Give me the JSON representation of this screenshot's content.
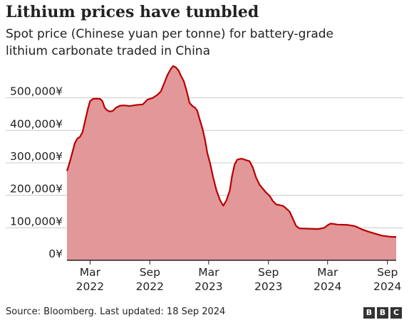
{
  "chart_data": {
    "type": "area",
    "title": "Lithium prices have tumbled",
    "subtitle_lines": [
      "Spot price (Chinese yuan per tonne) for battery-grade",
      "lithium carbonate traded in China"
    ],
    "ylim": [
      0,
      600000
    ],
    "yticks": [
      0,
      100000,
      200000,
      300000,
      400000,
      500000
    ],
    "ytick_labels": [
      "0¥",
      "100,000¥",
      "200,000¥",
      "300,000¥",
      "400,000¥",
      "500,000¥"
    ],
    "xlim": [
      "2021-12-20",
      "2024-09-28"
    ],
    "xticks": [
      {
        "date": "2022-03-01",
        "month": "Mar",
        "year": "2022"
      },
      {
        "date": "2022-09-01",
        "month": "Sep",
        "year": "2022"
      },
      {
        "date": "2023-03-01",
        "month": "Mar",
        "year": "2023"
      },
      {
        "date": "2023-09-01",
        "month": "Sep",
        "year": "2023"
      },
      {
        "date": "2024-03-01",
        "month": "Mar",
        "year": "2024"
      },
      {
        "date": "2024-09-01",
        "month": "Sep",
        "year": "2024"
      }
    ],
    "grid": true,
    "series": [
      {
        "line_color": "#b80000",
        "fill_color": "#e29799",
        "points": [
          [
            "2021-12-20",
            275000
          ],
          [
            "2021-12-28",
            300000
          ],
          [
            "2022-01-05",
            330000
          ],
          [
            "2022-01-13",
            360000
          ],
          [
            "2022-01-21",
            375000
          ],
          [
            "2022-01-29",
            380000
          ],
          [
            "2022-02-06",
            395000
          ],
          [
            "2022-02-14",
            430000
          ],
          [
            "2022-02-22",
            465000
          ],
          [
            "2022-03-01",
            490000
          ],
          [
            "2022-03-10",
            497000
          ],
          [
            "2022-03-20",
            498000
          ],
          [
            "2022-04-01",
            497000
          ],
          [
            "2022-04-08",
            490000
          ],
          [
            "2022-04-15",
            470000
          ],
          [
            "2022-04-22",
            462000
          ],
          [
            "2022-05-01",
            458000
          ],
          [
            "2022-05-10",
            460000
          ],
          [
            "2022-05-20",
            470000
          ],
          [
            "2022-06-01",
            476000
          ],
          [
            "2022-06-15",
            477000
          ],
          [
            "2022-07-01",
            475000
          ],
          [
            "2022-07-20",
            478000
          ],
          [
            "2022-08-10",
            480000
          ],
          [
            "2022-08-25",
            495000
          ],
          [
            "2022-09-10",
            500000
          ],
          [
            "2022-09-25",
            510000
          ],
          [
            "2022-10-05",
            520000
          ],
          [
            "2022-10-15",
            545000
          ],
          [
            "2022-10-25",
            570000
          ],
          [
            "2022-11-05",
            590000
          ],
          [
            "2022-11-12",
            598000
          ],
          [
            "2022-11-20",
            594000
          ],
          [
            "2022-11-28",
            585000
          ],
          [
            "2022-12-05",
            570000
          ],
          [
            "2022-12-15",
            550000
          ],
          [
            "2022-12-25",
            515000
          ],
          [
            "2023-01-01",
            485000
          ],
          [
            "2023-01-10",
            475000
          ],
          [
            "2023-01-18",
            470000
          ],
          [
            "2023-01-25",
            460000
          ],
          [
            "2023-02-01",
            435000
          ],
          [
            "2023-02-10",
            405000
          ],
          [
            "2023-02-18",
            370000
          ],
          [
            "2023-02-25",
            330000
          ],
          [
            "2023-03-05",
            300000
          ],
          [
            "2023-03-15",
            255000
          ],
          [
            "2023-03-25",
            215000
          ],
          [
            "2023-04-05",
            185000
          ],
          [
            "2023-04-15",
            168000
          ],
          [
            "2023-04-25",
            185000
          ],
          [
            "2023-05-05",
            215000
          ],
          [
            "2023-05-12",
            260000
          ],
          [
            "2023-05-20",
            295000
          ],
          [
            "2023-05-28",
            310000
          ],
          [
            "2023-06-10",
            313000
          ],
          [
            "2023-06-25",
            308000
          ],
          [
            "2023-07-05",
            305000
          ],
          [
            "2023-07-15",
            285000
          ],
          [
            "2023-07-25",
            255000
          ],
          [
            "2023-08-05",
            232000
          ],
          [
            "2023-08-15",
            220000
          ],
          [
            "2023-08-25",
            208000
          ],
          [
            "2023-09-05",
            198000
          ],
          [
            "2023-09-15",
            182000
          ],
          [
            "2023-09-25",
            172000
          ],
          [
            "2023-10-05",
            170000
          ],
          [
            "2023-10-15",
            168000
          ],
          [
            "2023-10-25",
            160000
          ],
          [
            "2023-11-05",
            150000
          ],
          [
            "2023-11-15",
            128000
          ],
          [
            "2023-11-25",
            106000
          ],
          [
            "2023-12-05",
            98000
          ],
          [
            "2024-01-01",
            97000
          ],
          [
            "2024-02-01",
            96000
          ],
          [
            "2024-02-20",
            100000
          ],
          [
            "2024-03-01",
            108000
          ],
          [
            "2024-03-10",
            113000
          ],
          [
            "2024-03-20",
            112000
          ],
          [
            "2024-04-01",
            110000
          ],
          [
            "2024-05-01",
            109000
          ],
          [
            "2024-05-25",
            105000
          ],
          [
            "2024-06-15",
            95000
          ],
          [
            "2024-07-05",
            88000
          ],
          [
            "2024-07-25",
            82000
          ],
          [
            "2024-08-15",
            76000
          ],
          [
            "2024-08-28",
            74000
          ],
          [
            "2024-09-15",
            72000
          ],
          [
            "2024-09-28",
            72000
          ]
        ]
      }
    ]
  },
  "footer": {
    "source": "Source: Bloomberg. Last updated: 18 Sep 2024",
    "logo_letters": [
      "B",
      "B",
      "C"
    ]
  },
  "colors": {
    "line": "#b80000",
    "fill": "#e29799",
    "grid": "#cccccc",
    "axis": "#222222",
    "logo_block": "#333333"
  }
}
